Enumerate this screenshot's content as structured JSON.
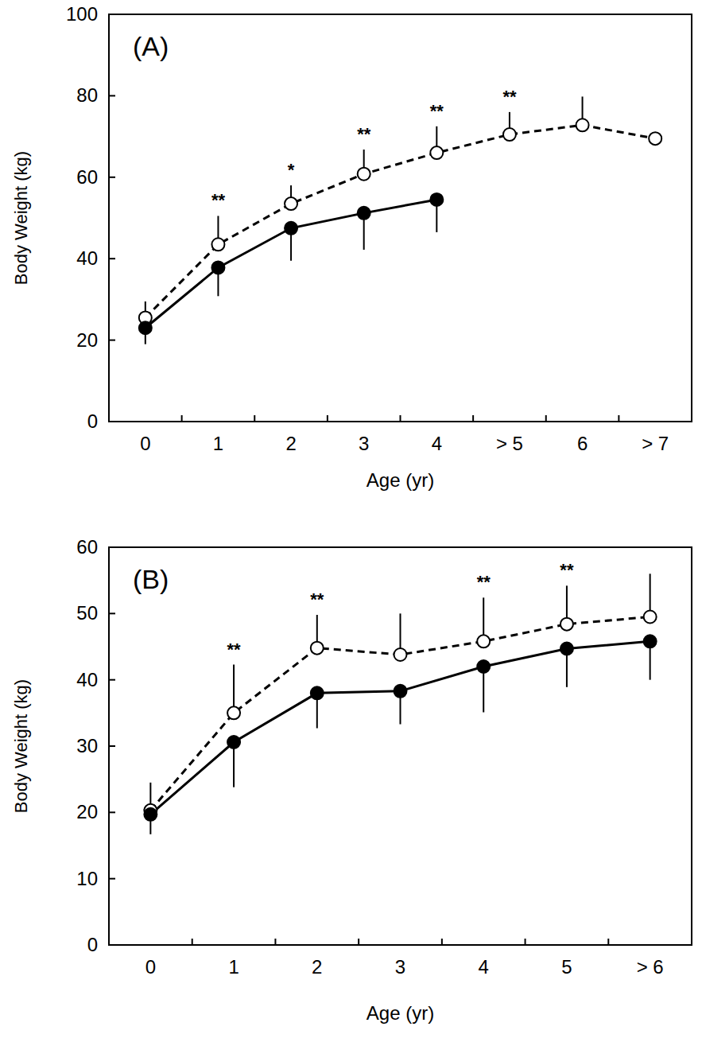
{
  "chart_data": [
    {
      "type": "line",
      "title": "(A)",
      "x_label": "Age (yr)",
      "y_label": "Body Weight (kg)",
      "categories": [
        "0",
        "1",
        "2",
        "3",
        "4",
        "> 5",
        "6",
        "> 7"
      ],
      "ylim": [
        0,
        100
      ],
      "yticks": [
        0,
        20,
        40,
        60,
        80,
        100
      ],
      "series": [
        {
          "color": "#000000",
          "marker": "open",
          "line_style": "dashed",
          "values": [
            25.5,
            43.5,
            53.5,
            60.8,
            66,
            70.5,
            72.8,
            69.5
          ],
          "error_plus": [
            4,
            7,
            4.5,
            6,
            6.5,
            5.5,
            7,
            null
          ]
        },
        {
          "color": "#000000",
          "marker": "filled",
          "line_style": "solid",
          "values": [
            23,
            37.8,
            47.5,
            51.2,
            54.5,
            null,
            null,
            null
          ],
          "error_minus": [
            4,
            7,
            8,
            9,
            8,
            null,
            null,
            null
          ]
        }
      ],
      "annotations": [
        null,
        "**",
        "*",
        "**",
        "**",
        "**",
        null,
        null
      ]
    },
    {
      "type": "line",
      "title": "(B)",
      "x_label": "Age (yr)",
      "y_label": "Body Weight (kg)",
      "categories": [
        "0",
        "1",
        "2",
        "3",
        "4",
        "5",
        "> 6"
      ],
      "ylim": [
        0,
        60
      ],
      "yticks": [
        0,
        10,
        20,
        30,
        40,
        50,
        60
      ],
      "series": [
        {
          "color": "#000000",
          "marker": "open",
          "line_style": "dashed",
          "values": [
            20.3,
            35,
            44.8,
            43.8,
            45.8,
            48.4,
            49.5
          ],
          "error_plus": [
            4.2,
            7.3,
            5,
            6.2,
            6.6,
            5.8,
            6.5
          ]
        },
        {
          "color": "#000000",
          "marker": "filled",
          "line_style": "solid",
          "values": [
            19.7,
            30.6,
            38,
            38.3,
            42,
            44.7,
            45.8
          ],
          "error_minus": [
            3,
            6.8,
            5.3,
            5,
            6.9,
            5.8,
            5.8
          ]
        }
      ],
      "annotations": [
        null,
        "**",
        "**",
        null,
        "**",
        "**",
        null
      ]
    }
  ]
}
